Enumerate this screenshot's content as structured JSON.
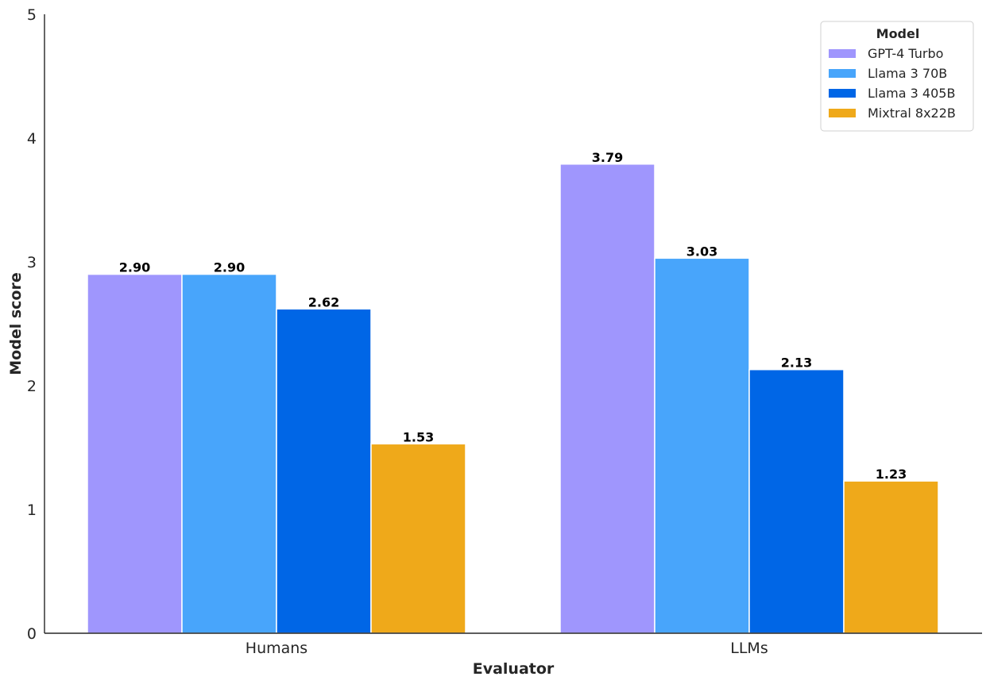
{
  "chart_data": {
    "type": "bar",
    "title": "",
    "xlabel": "Evaluator",
    "ylabel": "Model score",
    "categories": [
      "Humans",
      "LLMs"
    ],
    "series": [
      {
        "name": "GPT-4 Turbo",
        "color": "#9f96fd",
        "values": [
          2.9,
          3.79
        ],
        "labels": [
          "2.90",
          "3.79"
        ]
      },
      {
        "name": "Llama 3 70B",
        "color": "#48a5fb",
        "values": [
          2.9,
          3.03
        ],
        "labels": [
          "2.90",
          "3.03"
        ]
      },
      {
        "name": "Llama 3 405B",
        "color": "#0066e6",
        "values": [
          2.62,
          2.13
        ],
        "labels": [
          "2.62",
          "2.13"
        ]
      },
      {
        "name": "Mixtral 8x22B",
        "color": "#efa91a",
        "values": [
          1.53,
          1.23
        ],
        "labels": [
          "1.53",
          "1.23"
        ]
      }
    ],
    "ylim": [
      0,
      5
    ],
    "yticks": [
      "0",
      "1",
      "2",
      "3",
      "4",
      "5"
    ],
    "grid": false,
    "legend": {
      "title": "Model",
      "placement": "top-right"
    }
  }
}
